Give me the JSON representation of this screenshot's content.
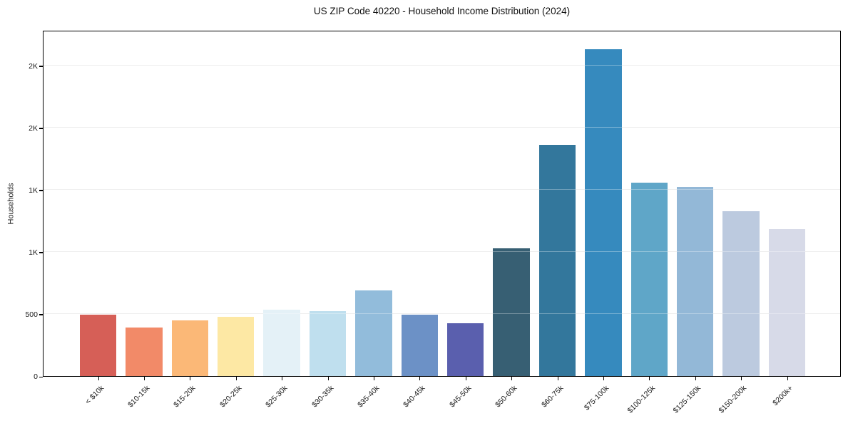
{
  "chart_data": {
    "type": "bar",
    "title": "US ZIP Code 40220 - Household Income Distribution (2024)",
    "xlabel": "",
    "ylabel": "Households",
    "categories": [
      "< $10k",
      "$10-15k",
      "$15-20k",
      "$20-25k",
      "$25-30k",
      "$30-35k",
      "$35-40k",
      "$40-45k",
      "$45-50k",
      "$50-60k",
      "$60-75k",
      "$75-100k",
      "$100-125k",
      "$125-150k",
      "$150-200k",
      "$200k+"
    ],
    "values": [
      495,
      390,
      450,
      475,
      535,
      525,
      690,
      495,
      425,
      1030,
      1860,
      2630,
      1560,
      1525,
      1325,
      1185
    ],
    "bar_colors": [
      "#d65f57",
      "#f28a68",
      "#fbb877",
      "#fde8a4",
      "#e4f1f7",
      "#bfdfee",
      "#92bcdb",
      "#6c91c6",
      "#5a5fae",
      "#375f73",
      "#33779c",
      "#368abe",
      "#5fa6c8",
      "#93b8d7",
      "#bccadf",
      "#d7dae8"
    ],
    "ylim": [
      0,
      2770
    ],
    "yticks": [
      {
        "value": 0,
        "label": "0"
      },
      {
        "value": 500,
        "label": "500"
      },
      {
        "value": 1000,
        "label": "1K"
      },
      {
        "value": 1500,
        "label": "1K"
      },
      {
        "value": 2000,
        "label": "2K"
      },
      {
        "value": 2500,
        "label": "2K"
      }
    ],
    "grid": "horizontal",
    "legend": "none"
  }
}
